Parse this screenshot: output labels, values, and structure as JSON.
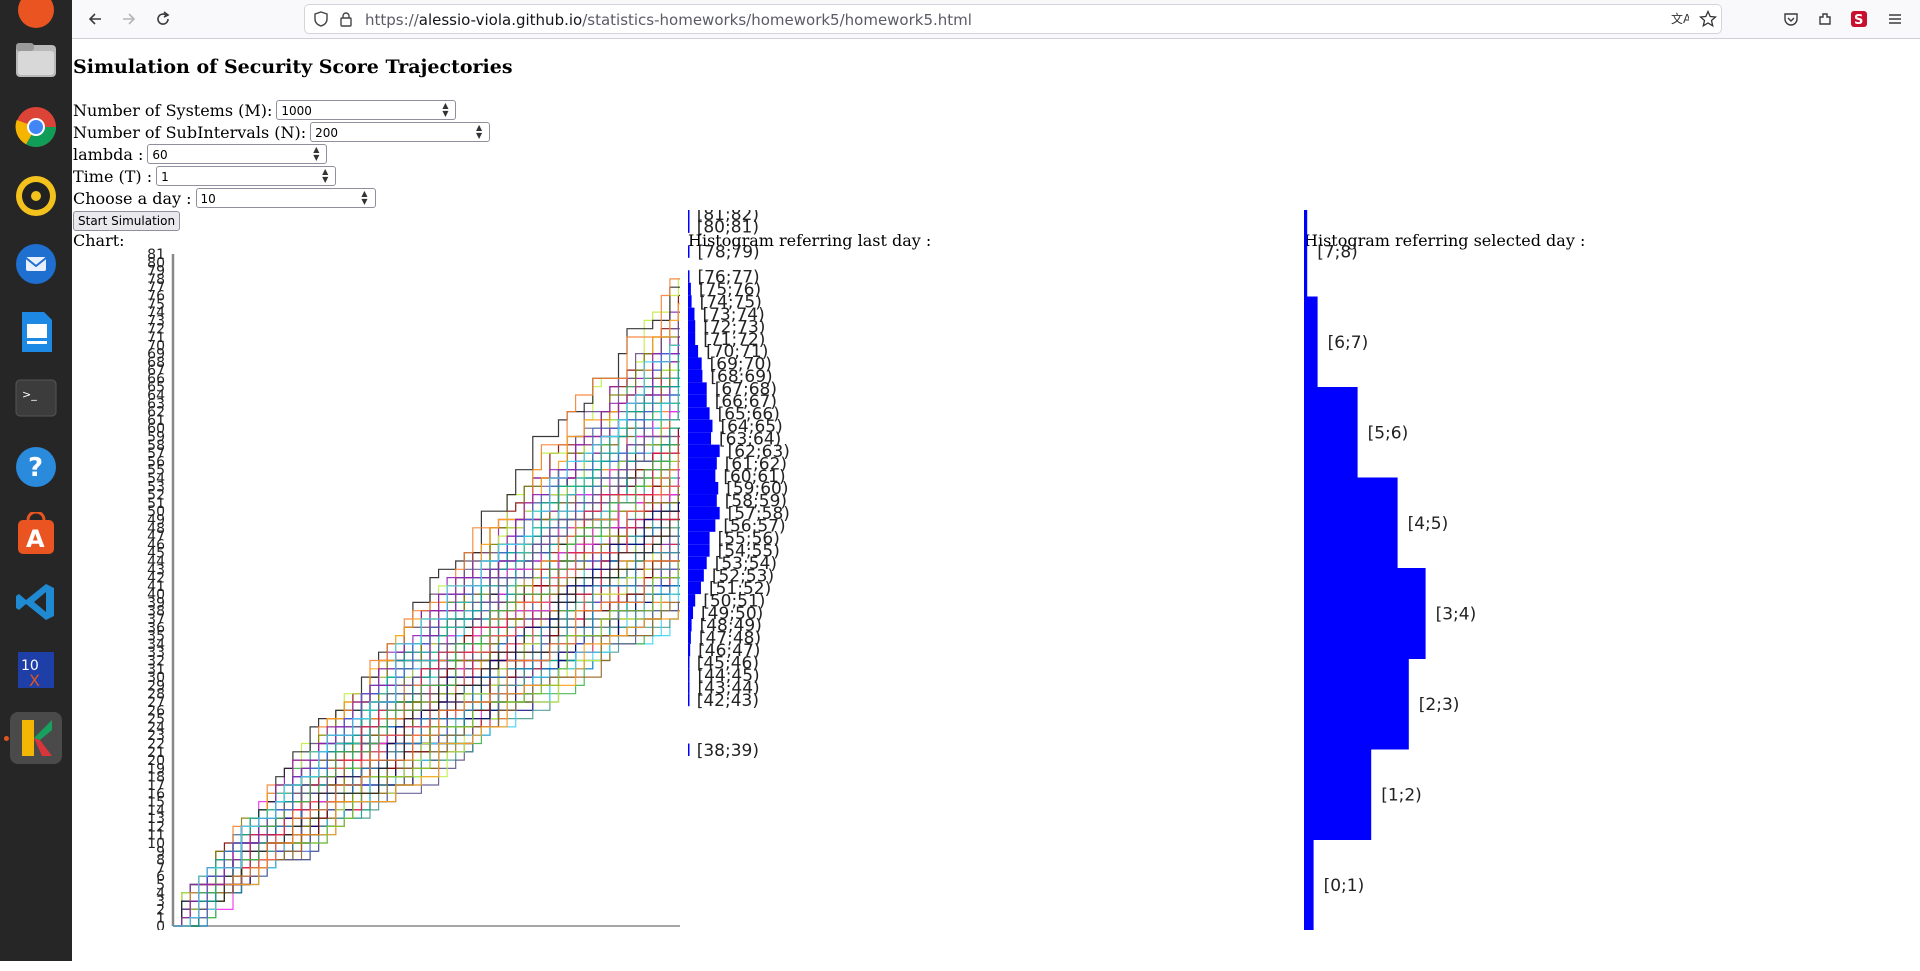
{
  "browser": {
    "url_scheme": "https://",
    "url_host": "alessio-viola.github.io",
    "url_path": "/statistics-homeworks/homework5/homework5.html"
  },
  "page": {
    "title": "Simulation of Security Score Trajectories",
    "fields": [
      {
        "label": "Number of Systems (M):",
        "value": "1000"
      },
      {
        "label": "Number of SubIntervals (N):",
        "value": "200"
      },
      {
        "label": "lambda :",
        "value": "60"
      },
      {
        "label": "Time (T) :",
        "value": "1"
      },
      {
        "label": "Choose a day :",
        "value": "10"
      }
    ],
    "start_button": "Start Simulation",
    "chart_label": "Chart:",
    "hist_last_label": "Histogram referring last day :",
    "hist_selected_label": "Histogram referring selected day :"
  },
  "chart_data": [
    {
      "type": "line",
      "y_ticks_min": 0,
      "y_ticks_max": 81,
      "n_series": 1000,
      "y_range_final": [
        38,
        82
      ]
    },
    {
      "type": "bar",
      "orientation": "horizontal",
      "categories": [
        "[38;39)",
        "[42;43)",
        "[43;44)",
        "[44;45)",
        "[45;46)",
        "[46;47)",
        "[47;48)",
        "[48;49)",
        "[49;50)",
        "[50;51)",
        "[51;52)",
        "[52;53)",
        "[53;54)",
        "[54;55)",
        "[55;56)",
        "[56;57)",
        "[57;58)",
        "[58;59)",
        "[59;60)",
        "[60;61)",
        "[61;62)",
        "[62;63)",
        "[63;64)",
        "[64;65)",
        "[65;66)",
        "[66;67)",
        "[67;68)",
        "[68;69)",
        "[69;70)",
        "[70;71)",
        "[71;72)",
        "[72;73)",
        "[73;74)",
        "[74;75)",
        "[75;76)",
        "[76;77)",
        "[78;79)",
        "[80;81)",
        "[81;82)"
      ],
      "values": [
        1,
        1,
        2,
        2,
        1,
        3,
        4,
        5,
        7,
        10,
        18,
        22,
        26,
        30,
        30,
        38,
        44,
        40,
        42,
        38,
        40,
        44,
        32,
        34,
        30,
        26,
        26,
        20,
        19,
        14,
        10,
        10,
        9,
        5,
        4,
        2,
        2,
        1,
        1
      ]
    },
    {
      "type": "bar",
      "orientation": "horizontal",
      "categories": [
        "[0;1)",
        "[1;2)",
        "[2;3)",
        "[3;4)",
        "[4;5)",
        "[5;6)",
        "[6;7)",
        "[7;8)"
      ],
      "values": [
        12,
        84,
        131,
        152,
        117,
        67,
        17,
        4
      ]
    }
  ]
}
